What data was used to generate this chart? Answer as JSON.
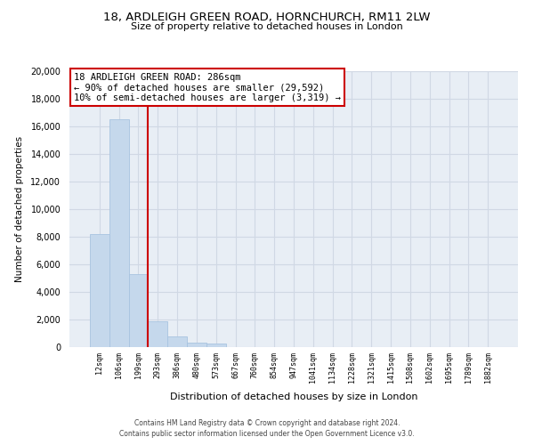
{
  "title1": "18, ARDLEIGH GREEN ROAD, HORNCHURCH, RM11 2LW",
  "title2": "Size of property relative to detached houses in London",
  "xlabel": "Distribution of detached houses by size in London",
  "ylabel": "Number of detached properties",
  "bar_labels": [
    "12sqm",
    "106sqm",
    "199sqm",
    "293sqm",
    "386sqm",
    "480sqm",
    "573sqm",
    "667sqm",
    "760sqm",
    "854sqm",
    "947sqm",
    "1041sqm",
    "1134sqm",
    "1228sqm",
    "1321sqm",
    "1415sqm",
    "1508sqm",
    "1602sqm",
    "1695sqm",
    "1789sqm",
    "1882sqm"
  ],
  "bar_values": [
    8200,
    16500,
    5300,
    1850,
    800,
    300,
    270,
    0,
    0,
    0,
    0,
    0,
    0,
    0,
    0,
    0,
    0,
    0,
    0,
    0,
    0
  ],
  "bar_color": "#c5d8ec",
  "bar_edge_color": "#a8c4e0",
  "vline_color": "#cc0000",
  "annotation_line1": "18 ARDLEIGH GREEN ROAD: 286sqm",
  "annotation_line2": "← 90% of detached houses are smaller (29,592)",
  "annotation_line3": "10% of semi-detached houses are larger (3,319) →",
  "annotation_box_color": "#ffffff",
  "annotation_box_edge": "#cc0000",
  "ylim": [
    0,
    20000
  ],
  "yticks": [
    0,
    2000,
    4000,
    6000,
    8000,
    10000,
    12000,
    14000,
    16000,
    18000,
    20000
  ],
  "grid_color": "#d0d8e4",
  "bg_color": "#e8eef5",
  "footnote1": "Contains HM Land Registry data © Crown copyright and database right 2024.",
  "footnote2": "Contains public sector information licensed under the Open Government Licence v3.0."
}
